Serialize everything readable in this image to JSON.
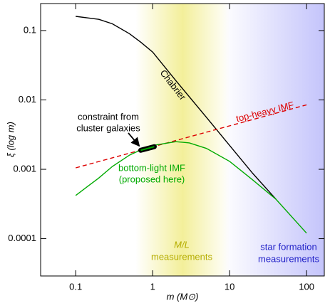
{
  "chart_data": {
    "type": "line",
    "xlabel": "m (M⊙)",
    "ylabel": "ξ (log m)",
    "xscale": "log",
    "yscale": "log",
    "xlim": [
      0.035,
      170
    ],
    "ylim": [
      2.9e-05,
      0.245
    ],
    "xticks": [
      0.1,
      1,
      10,
      100
    ],
    "yticks": [
      0.0001,
      0.001,
      0.01,
      0.1
    ],
    "bands": [
      {
        "label": [
          "M/L",
          "measurements"
        ],
        "color": "#f3ef9a",
        "text_color": "#b5ad00",
        "xlim": [
          0.6,
          10
        ]
      },
      {
        "label": [
          "star formation",
          "measurements"
        ],
        "color": "#c4c4fb",
        "text_color": "#2222c8",
        "xlim": [
          8,
          170
        ]
      }
    ],
    "series": [
      {
        "name": "Chabrier",
        "color": "#000000",
        "dash": false,
        "x": [
          0.1,
          0.2,
          0.3,
          0.5,
          0.7,
          1,
          2,
          5,
          10,
          20,
          40
        ],
        "values": [
          0.16,
          0.145,
          0.125,
          0.09,
          0.068,
          0.049,
          0.019,
          0.0056,
          0.0022,
          0.00087,
          0.00037
        ]
      },
      {
        "name": "top-heavy IMF",
        "color": "#dd0000",
        "dash": true,
        "x": [
          0.1,
          100
        ],
        "values": [
          0.00105,
          0.0085
        ]
      },
      {
        "name": "bottom-light IMF",
        "note": "(proposed here)",
        "color": "#00aa00",
        "dash": false,
        "x": [
          0.1,
          0.2,
          0.3,
          0.5,
          0.7,
          1,
          2,
          3,
          5,
          10,
          20,
          40,
          100
        ],
        "values": [
          0.00042,
          0.00075,
          0.0011,
          0.0016,
          0.0019,
          0.0022,
          0.0025,
          0.0024,
          0.002,
          0.0013,
          0.0007,
          0.00037,
          0.00012
        ]
      }
    ],
    "constraint": {
      "label": [
        "constraint from",
        "cluster galaxies"
      ],
      "x": [
        0.7,
        1.05
      ],
      "values": [
        0.00188,
        0.00212
      ]
    }
  }
}
